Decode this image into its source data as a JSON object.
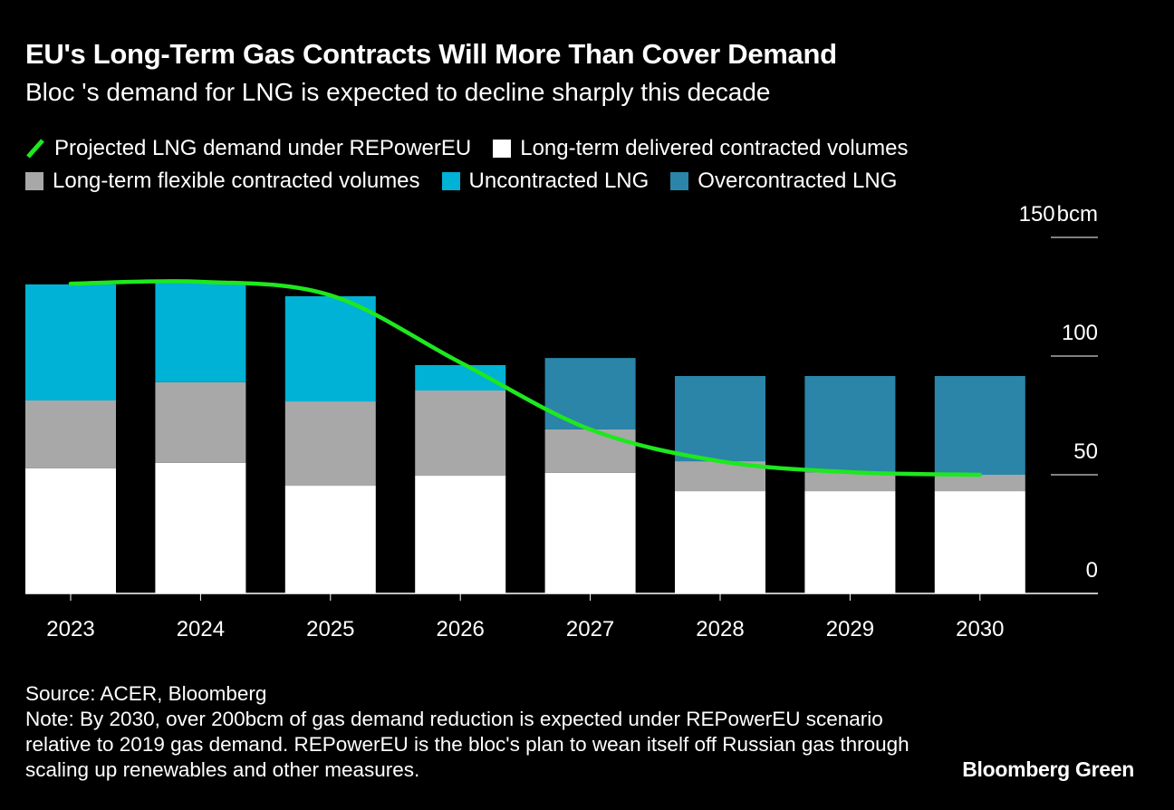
{
  "title": "EU's Long-Term Gas Contracts Will More Than Cover Demand",
  "subtitle": "Bloc 's demand for LNG is expected to decline sharply this decade",
  "source": "Source: ACER, Bloomberg",
  "note": "Note: By 2030, over 200bcm of gas demand reduction is expected under REPowerEU scenario relative to 2019 gas demand. REPowerEU is the bloc's plan to wean itself off Russian gas through scaling up renewables and other measures.",
  "brand": "Bloomberg Green",
  "chart_data": {
    "type": "bar",
    "stacked": true,
    "categories": [
      "2023",
      "2024",
      "2025",
      "2026",
      "2027",
      "2028",
      "2029",
      "2030"
    ],
    "y_unit": "bcm",
    "ylim": [
      0,
      150
    ],
    "yticks": [
      0,
      50,
      100,
      150
    ],
    "ytick_labels": [
      "0",
      "50",
      "100",
      "150"
    ],
    "legend_placement": "top",
    "series": [
      {
        "name": "Long-term delivered contracted volumes",
        "type": "bar",
        "color": "#ffffff",
        "values": [
          52.7,
          55.0,
          45.4,
          49.6,
          50.8,
          43.1,
          43.1,
          43.1
        ]
      },
      {
        "name": "Long-term flexible contracted volumes",
        "type": "bar",
        "color": "#a8a8a8",
        "values": [
          28.6,
          34.0,
          35.5,
          35.9,
          18.3,
          12.6,
          8.0,
          6.9
        ]
      },
      {
        "name": "Uncontracted LNG",
        "type": "bar",
        "color": "#00b2d6",
        "values": [
          48.9,
          42.3,
          44.3,
          10.7,
          0,
          0,
          0,
          0
        ]
      },
      {
        "name": "Overcontracted LNG",
        "type": "bar",
        "color": "#2a85a8",
        "values": [
          0,
          0,
          0,
          0,
          30.1,
          35.9,
          40.5,
          41.6
        ]
      },
      {
        "name": "Projected LNG demand under REPowerEU",
        "type": "line",
        "color": "#1ee81e",
        "values": [
          130.5,
          131.3,
          125.6,
          97.3,
          69.1,
          55.7,
          51.1,
          50.0
        ]
      }
    ]
  }
}
